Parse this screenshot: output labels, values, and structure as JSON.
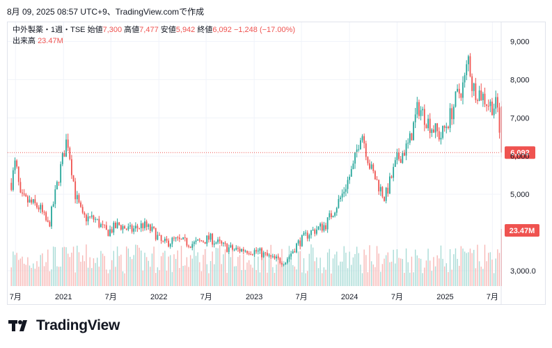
{
  "header": {
    "timestamp": "8月 09, 2025 08:57 UTC+9、TradingView.comで作成"
  },
  "legend": {
    "symbol": "中外製薬・1週・TSE",
    "open_label": "始値",
    "open": "7,300",
    "high_label": "高値",
    "high": "7,477",
    "low_label": "安値",
    "low": "5,942",
    "close_label": "終値",
    "close": "6,092",
    "change": "−1,248 (−17.00%)",
    "volume_label": "出来高",
    "volume": "23.47M"
  },
  "footer": {
    "brand": "TradingView"
  },
  "colors": {
    "up": "#26a69a",
    "down": "#ef5350",
    "up_volume": "#a8dbd6",
    "down_volume": "#f7b8b6",
    "grid": "#f0f3fa",
    "text": "#131722"
  },
  "chart_data": {
    "type": "candlestick",
    "interval": "1 week",
    "y_axis": {
      "ticks": [
        3000,
        5000,
        6000,
        7000,
        8000,
        9000
      ],
      "tick_labels": [
        "3,000.0",
        "5,000",
        "6,000",
        "7,000",
        "8,000",
        "9,000"
      ],
      "range": [
        2600,
        9500
      ],
      "position": "right"
    },
    "x_axis": {
      "labels": [
        "7月",
        "2021",
        "7月",
        "2022",
        "7月",
        "2023",
        "7月",
        "2024",
        "7月",
        "2025",
        "7月"
      ],
      "dates": [
        "2020-07",
        "2021-01",
        "2021-07",
        "2022-01",
        "2022-07",
        "2023-01",
        "2023-07",
        "2024-01",
        "2024-07",
        "2025-01",
        "2025-07"
      ],
      "range": [
        "2020-06",
        "2025-08"
      ]
    },
    "last_price": {
      "value": 6092,
      "label": "6,092"
    },
    "last_volume": {
      "value": 23.47,
      "unit": "M",
      "label": "23.47M"
    },
    "price_path": [
      [
        "2020-06-15",
        5300
      ],
      [
        "2020-07-01",
        5850
      ],
      [
        "2020-07-20",
        4900
      ],
      [
        "2020-08-20",
        4800
      ],
      [
        "2020-10-01",
        4650
      ],
      [
        "2020-11-05",
        4150
      ],
      [
        "2020-12-15",
        5500
      ],
      [
        "2021-01-15",
        6500
      ],
      [
        "2021-02-15",
        5000
      ],
      [
        "2021-03-15",
        4400
      ],
      [
        "2021-05-01",
        4350
      ],
      [
        "2021-06-15",
        4000
      ],
      [
        "2021-08-01",
        4200
      ],
      [
        "2021-09-15",
        4050
      ],
      [
        "2021-11-01",
        4200
      ],
      [
        "2021-12-15",
        4000
      ],
      [
        "2022-01-15",
        3700
      ],
      [
        "2022-03-01",
        3800
      ],
      [
        "2022-05-15",
        3700
      ],
      [
        "2022-07-15",
        3850
      ],
      [
        "2022-09-01",
        3650
      ],
      [
        "2022-10-15",
        3550
      ],
      [
        "2022-12-01",
        3550
      ],
      [
        "2023-01-15",
        3500
      ],
      [
        "2023-03-15",
        3300
      ],
      [
        "2023-05-01",
        3250
      ],
      [
        "2023-06-15",
        3700
      ],
      [
        "2023-08-01",
        4000
      ],
      [
        "2023-10-01",
        4200
      ],
      [
        "2023-12-01",
        4950
      ],
      [
        "2024-01-15",
        5700
      ],
      [
        "2024-02-15",
        6700
      ],
      [
        "2024-03-20",
        5700
      ],
      [
        "2024-05-15",
        4900
      ],
      [
        "2024-07-01",
        5900
      ],
      [
        "2024-08-15",
        6300
      ],
      [
        "2024-09-20",
        7300
      ],
      [
        "2024-11-01",
        6850
      ],
      [
        "2024-12-15",
        6500
      ],
      [
        "2025-01-15",
        6950
      ],
      [
        "2025-02-15",
        7550
      ],
      [
        "2025-03-15",
        7900
      ],
      [
        "2025-04-01",
        8600
      ],
      [
        "2025-04-15",
        7800
      ],
      [
        "2025-05-15",
        7650
      ],
      [
        "2025-06-20",
        7340
      ],
      [
        "2025-07-20",
        7300
      ],
      [
        "2025-08-05",
        6092
      ]
    ]
  }
}
